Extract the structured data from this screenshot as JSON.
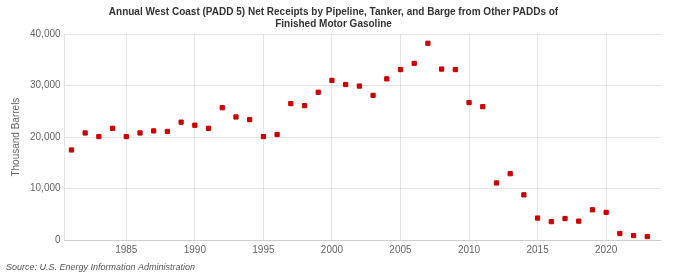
{
  "chart_data": {
    "type": "scatter",
    "title": "Annual West Coast (PADD 5) Net Receipts by Pipeline, Tanker, and Barge from Other PADDs of\nFinished Motor Gasoline",
    "ylabel": "Thousand Barrels",
    "annotations": [
      "Source: U.S. Energy Information Administration"
    ],
    "x": [
      1981,
      1982,
      1983,
      1984,
      1985,
      1986,
      1987,
      1988,
      1989,
      1990,
      1991,
      1992,
      1993,
      1994,
      1995,
      1996,
      1997,
      1998,
      1999,
      2000,
      2001,
      2002,
      2003,
      2004,
      2005,
      2006,
      2007,
      2008,
      2009,
      2010,
      2011,
      2012,
      2013,
      2014,
      2015,
      2016,
      2017,
      2018,
      2019,
      2020,
      2021,
      2022,
      2023
    ],
    "values": [
      17500,
      20800,
      20100,
      21700,
      20100,
      20800,
      21200,
      21100,
      22900,
      22300,
      21700,
      25700,
      23900,
      23400,
      20100,
      20500,
      26500,
      26100,
      28700,
      31000,
      30200,
      29900,
      28100,
      31300,
      33100,
      34300,
      38200,
      33200,
      33100,
      26700,
      25900,
      11100,
      12900,
      8800,
      4300,
      3600,
      4200,
      3700,
      5900,
      5400,
      1300,
      900,
      700
    ],
    "color": "#cc0000",
    "marker": "square",
    "xlim": [
      1980.5,
      2024
    ],
    "xticks": [
      1985,
      1990,
      1995,
      2000,
      2005,
      2010,
      2015,
      2020
    ],
    "ylim": [
      0,
      40000
    ],
    "yticks": [
      0,
      {
        "value": 10000,
        "label": "10,000"
      },
      {
        "value": 20000,
        "label": "20,000"
      },
      {
        "value": 30000,
        "label": "30,000"
      },
      {
        "value": 40000,
        "label": "40,000"
      }
    ],
    "grid": true
  }
}
